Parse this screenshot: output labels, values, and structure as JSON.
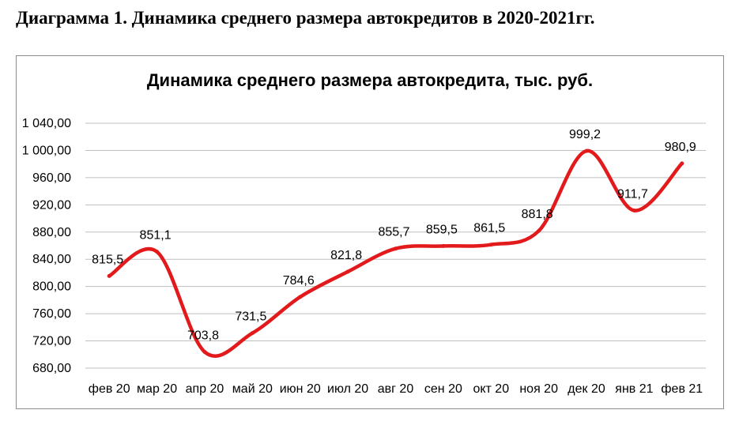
{
  "heading": "Диаграмма 1. Динамика среднего размера автокредитов  в 2020-2021гг.",
  "chart_data": {
    "type": "line",
    "title": "Динамика среднего размера автокредита,  тыс. руб.",
    "xlabel": "",
    "ylabel": "",
    "categories": [
      "фев 20",
      "мар 20",
      "апр 20",
      "май 20",
      "июн 20",
      "июл 20",
      "авг 20",
      "сен 20",
      "окт 20",
      "ноя 20",
      "дек 20",
      "янв 21",
      "фев 21"
    ],
    "series": [
      {
        "values": [
          815.5,
          851.1,
          703.8,
          731.5,
          784.6,
          821.8,
          855.7,
          859.5,
          861.5,
          881.8,
          999.2,
          911.7,
          980.9
        ],
        "data_labels": [
          "815,5",
          "851,1",
          "703,8",
          "731,5",
          "784,6",
          "821,8",
          "855,7",
          "859,5",
          "861,5",
          "881,8",
          "999,2",
          "911,7",
          "980,9"
        ],
        "color": "#e31a1c"
      }
    ],
    "ylim": [
      680,
      1040
    ],
    "yticks": [
      680,
      720,
      760,
      800,
      840,
      880,
      920,
      960,
      1000,
      1040
    ],
    "ytick_labels": [
      "680,00",
      "720,00",
      "760,00",
      "800,00",
      "840,00",
      "880,00",
      "920,00",
      "960,00",
      "1 000,00",
      "1 040,00"
    ],
    "grid": true,
    "gridline_color": "#bfbfbf",
    "legend": "none"
  }
}
